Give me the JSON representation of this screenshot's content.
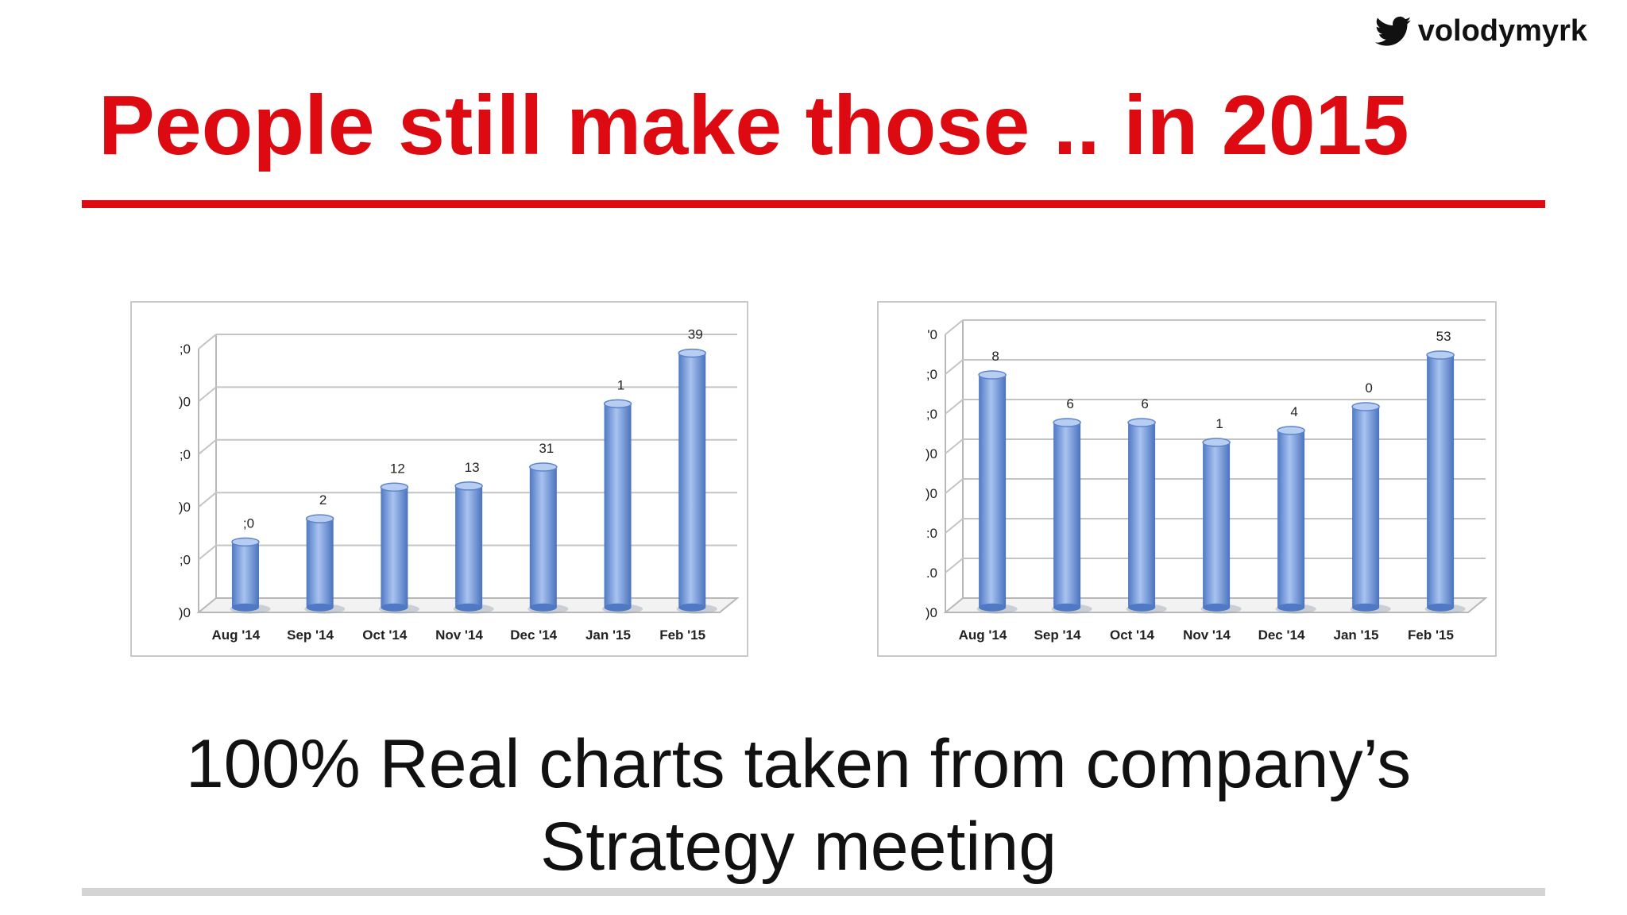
{
  "handle": {
    "icon": "twitter-bird-icon",
    "text": "volodymyrk"
  },
  "title": "People still make those .. in 2015",
  "caption": {
    "line1": "100% Real charts taken from company’s",
    "line2": "Strategy meeting"
  },
  "colors": {
    "title_red": "#dd0a12",
    "bar_blue": "#6f96d8"
  },
  "chart_data": [
    {
      "type": "bar",
      "categories": [
        "Aug '14",
        "Sep '14",
        "Oct '14",
        "Nov '14",
        "Dec '14",
        "Jan '15",
        "Feb '15"
      ],
      "series": [
        {
          "values": [
            60,
            82,
            112,
            113,
            131,
            191,
            239
          ]
        }
      ],
      "data_labels": [
        "60",
        "82",
        "112",
        "113",
        "131",
        "191",
        "239"
      ],
      "data_labels_shown": [
        ";0",
        "2",
        "12",
        "13",
        "31",
        "1",
        "39"
      ],
      "ytick_labels": [
        ";0",
        ")0",
        ";0",
        ")0",
        ";0",
        "0"
      ],
      "ytick_labels_shown": [
        ")0",
        ";0",
        ")0",
        ";0",
        ")0",
        ";0"
      ],
      "ylim": [
        0,
        250
      ],
      "grid": true
    },
    {
      "type": "bar",
      "categories": [
        "Aug '14",
        "Sep '14",
        "Oct '14",
        "Nov '14",
        "Dec '14",
        "Jan '15",
        "Feb '15"
      ],
      "series": [
        {
          "values": [
            58,
            46,
            46,
            41,
            44,
            50,
            63
          ]
        }
      ],
      "data_labels_shown": [
        "8",
        "6",
        "6",
        "1",
        "4",
        "0",
        "53"
      ],
      "ytick_labels_shown": [
        ")0",
        ".0",
        ":0",
        ")0",
        ")0",
        ";0",
        ";0",
        "'0"
      ],
      "ylim": [
        0,
        70
      ],
      "grid": true
    }
  ]
}
